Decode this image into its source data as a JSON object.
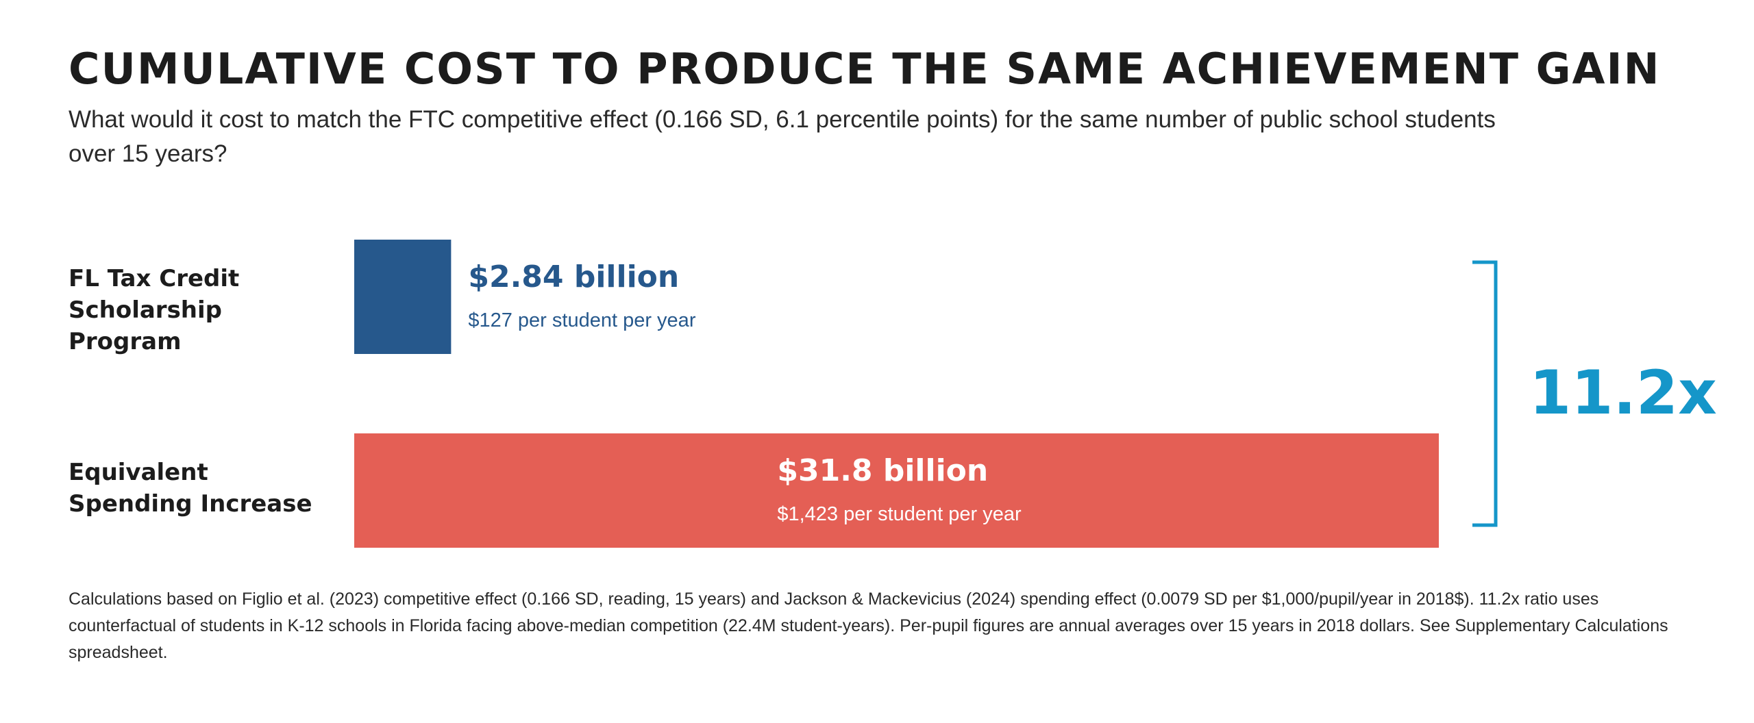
{
  "title": "CUMULATIVE COST TO PRODUCE THE SAME ACHIEVEMENT GAIN",
  "subtitle": "What would it cost to match the FTC competitive effect (0.166 SD, 6.1 percentile points) for the same number of public school students over 15 years?",
  "chart_data": {
    "type": "bar",
    "orientation": "horizontal",
    "categories": [
      "FL Tax Credit Scholarship Program",
      "Equivalent Spending Increase"
    ],
    "category_lines": [
      [
        "FL Tax Credit",
        "Scholarship Program"
      ],
      [
        "Equivalent",
        "Spending Increase"
      ]
    ],
    "values": [
      2.84,
      31.8
    ],
    "value_labels": [
      "$2.84 billion",
      "$31.8 billion"
    ],
    "per_student_labels": [
      "$127 per student per year",
      "$1,423 per student per year"
    ],
    "colors": [
      "#26588c",
      "#e45f55"
    ],
    "xlim": [
      0,
      31.8
    ],
    "grid": false,
    "ratio_label": "11.2x",
    "ratio_color": "#1596c9"
  },
  "footnote": "Calculations based on Figlio et al. (2023) competitive effect (0.166 SD, reading, 15 years) and Jackson & Mackevicius (2024) spending effect (0.0079 SD per $1,000/pupil/year in 2018$). 11.2x ratio uses counterfactual of students in K-12 schools in Florida facing above-median competition (22.4M student-years). Per-pupil figures are annual averages over 15 years in 2018 dollars. See Supplementary Calculations spreadsheet."
}
